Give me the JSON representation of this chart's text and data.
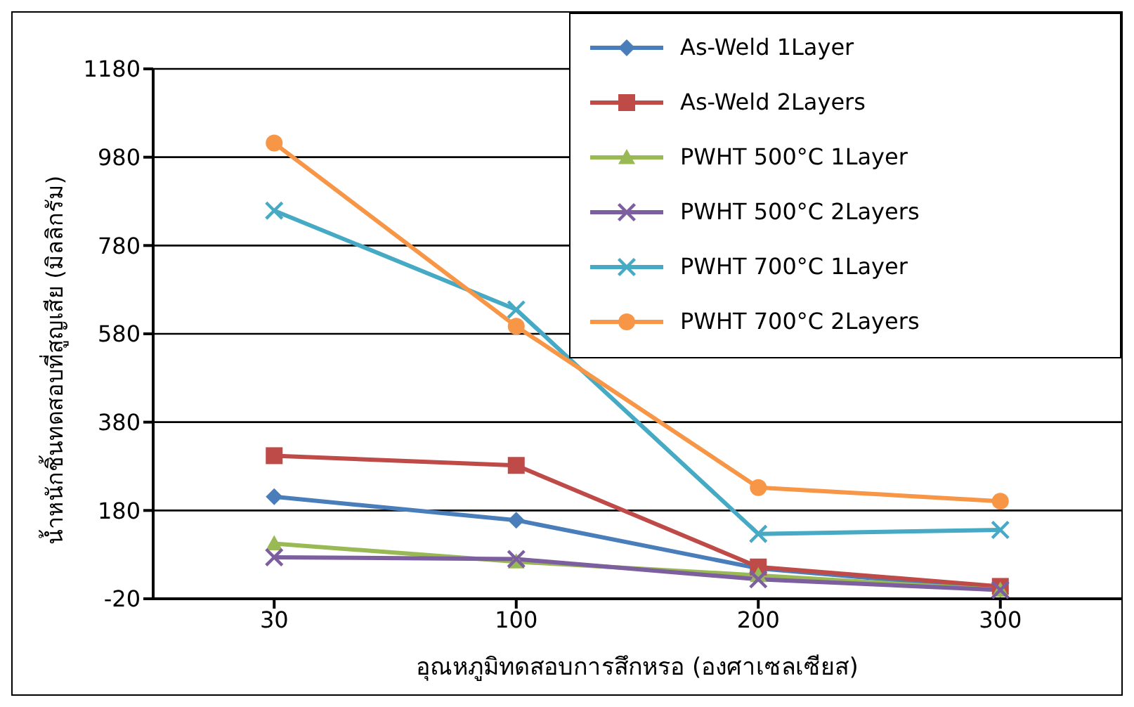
{
  "chart_data": {
    "type": "line",
    "xlabel": "อุณหภูมิทดสอบการสึกหรอ (องศาเซลเซียส)",
    "ylabel": "น้ำหนักชิ้นทดสอบที่สูญเสีย (มิลลิกรัม)",
    "categories": [
      "30",
      "100",
      "200",
      "300"
    ],
    "ylim": [
      -20,
      1180
    ],
    "yticks": [
      -20,
      180,
      380,
      580,
      780,
      980,
      1180
    ],
    "grid": "y",
    "legend": "top right",
    "series": [
      {
        "name": "As-Weld 1Layer",
        "color": "#4a7ebb",
        "marker": "diamond",
        "values": [
          211,
          158,
          49,
          2
        ]
      },
      {
        "name": "As-Weld 2Layers",
        "color": "#be4b48",
        "marker": "square",
        "values": [
          304,
          282,
          52,
          8
        ]
      },
      {
        "name": "PWHT 500°C 1Layer",
        "color": "#98b954",
        "marker": "triangle",
        "values": [
          105,
          64,
          33,
          0
        ]
      },
      {
        "name": "PWHT 500°C 2Layers",
        "color": "#7d5fa0",
        "marker": "cross",
        "values": [
          74,
          70,
          24,
          0
        ]
      },
      {
        "name": "PWHT 700°C 1Layer",
        "color": "#46aac5",
        "marker": "cross",
        "values": [
          859,
          635,
          127,
          136
        ]
      },
      {
        "name": "PWHT 700°C 2Layers",
        "color": "#f79646",
        "marker": "circle",
        "values": [
          1012,
          597,
          232,
          201
        ]
      }
    ]
  }
}
